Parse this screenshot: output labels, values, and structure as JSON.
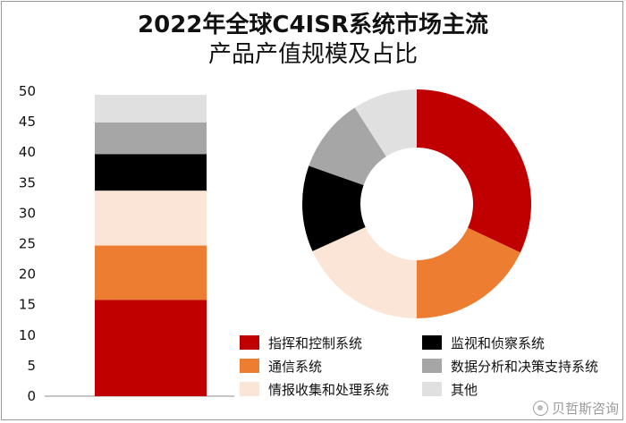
{
  "title_line1": "2022年全球C4ISR系统市场主流",
  "title_line2": "产品产值规模及占比",
  "watermark": "贝哲斯咨询",
  "chart_data": [
    {
      "type": "bar",
      "stacked": true,
      "title": "2022年全球C4ISR系统市场主流产品产值规模及占比",
      "ylim": [
        0,
        50
      ],
      "yticks": [
        0,
        5,
        10,
        15,
        20,
        25,
        30,
        35,
        40,
        45,
        50
      ],
      "grid": false,
      "categories": [
        ""
      ],
      "series": [
        {
          "name": "指挥和控制系统",
          "color": "#c00000",
          "values": [
            15.8
          ]
        },
        {
          "name": "通信系统",
          "color": "#ed7d31",
          "values": [
            8.9
          ]
        },
        {
          "name": "情报收集和处理系统",
          "color": "#fbe5d6",
          "values": [
            9.0
          ]
        },
        {
          "name": "监视和侦察系统",
          "color": "#000000",
          "values": [
            6.0
          ]
        },
        {
          "name": "数据分析和决策支持系统",
          "color": "#a6a6a6",
          "values": [
            5.2
          ]
        },
        {
          "name": "其他",
          "color": "#e0e0e0",
          "values": [
            4.5
          ]
        }
      ]
    },
    {
      "type": "pie",
      "donut": true,
      "labels": [
        "指挥和控制系统",
        "通信系统",
        "情报收集和处理系统",
        "监视和侦察系统",
        "数据分析和决策支持系统",
        "其他"
      ],
      "values": [
        32.3,
        18.2,
        18.4,
        12.3,
        10.6,
        9.2
      ],
      "colors": [
        "#c00000",
        "#ed7d31",
        "#fbe5d6",
        "#000000",
        "#a6a6a6",
        "#e0e0e0"
      ]
    }
  ],
  "legend": [
    {
      "label": "指挥和控制系统",
      "color": "#c00000"
    },
    {
      "label": "监视和侦察系统",
      "color": "#000000"
    },
    {
      "label": "通信系统",
      "color": "#ed7d31"
    },
    {
      "label": "数据分析和决策支持系统",
      "color": "#a6a6a6"
    },
    {
      "label": "情报收集和处理系统",
      "color": "#fbe5d6"
    },
    {
      "label": "其他",
      "color": "#e0e0e0"
    }
  ]
}
